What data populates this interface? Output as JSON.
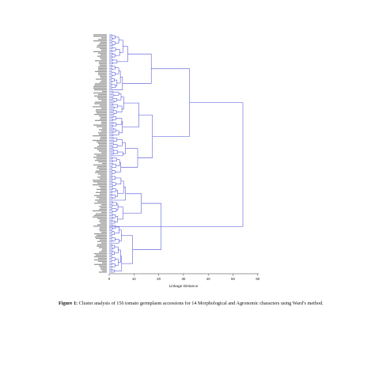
{
  "figure": {
    "axis": {
      "label": "Linkage Distance",
      "ticks": [
        "0",
        "10",
        "20",
        "30",
        "40",
        "50",
        "60"
      ],
      "min": 0,
      "max": 60
    },
    "line_color": "#4a4fd8",
    "leaf_label_color": "#444444",
    "caption": {
      "prefix": "Figure 1:",
      "text": " Cluster analysis of 156 tomato germplasm accessions for 14 Morphological and Agronomic characters using Ward’s method."
    }
  }
}
